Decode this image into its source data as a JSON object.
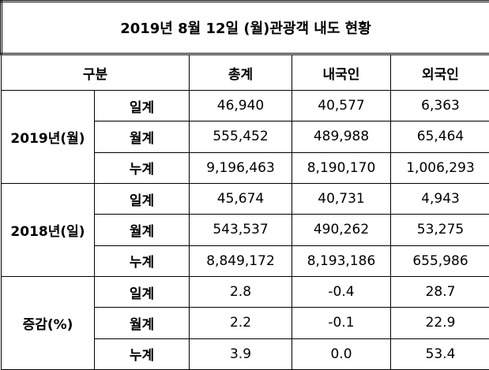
{
  "title": "2019년 8월 12일 (월)관광객 내도 현황",
  "header": {
    "group": "구분",
    "columns": [
      "총계",
      "내국인",
      "외국인"
    ]
  },
  "groups": [
    {
      "label": "2019년(월)",
      "rows": [
        {
          "label": "일계",
          "values": [
            "46,940",
            "40,577",
            "6,363"
          ]
        },
        {
          "label": "월계",
          "values": [
            "555,452",
            "489,988",
            "65,464"
          ]
        },
        {
          "label": "누계",
          "values": [
            "9,196,463",
            "8,190,170",
            "1,006,293"
          ]
        }
      ]
    },
    {
      "label": "2018년(일)",
      "rows": [
        {
          "label": "일계",
          "values": [
            "45,674",
            "40,731",
            "4,943"
          ]
        },
        {
          "label": "월계",
          "values": [
            "543,537",
            "490,262",
            "53,275"
          ]
        },
        {
          "label": "누계",
          "values": [
            "8,849,172",
            "8,193,186",
            "655,986"
          ]
        }
      ]
    },
    {
      "label": "증감(%)",
      "rows": [
        {
          "label": "일계",
          "values": [
            "2.8",
            "-0.4",
            "28.7"
          ]
        },
        {
          "label": "월계",
          "values": [
            "2.2",
            "-0.1",
            "22.9"
          ]
        },
        {
          "label": "누계",
          "values": [
            "3.9",
            "0.0",
            "53.4"
          ]
        }
      ]
    }
  ]
}
